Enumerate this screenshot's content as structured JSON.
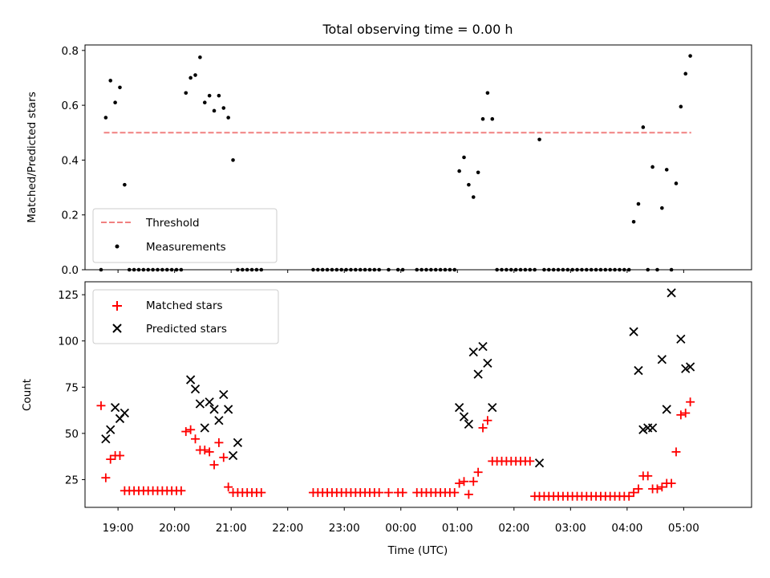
{
  "chart_data": [
    {
      "type": "scatter",
      "title": "Total observing time = 0.00 h",
      "xlabel": "",
      "ylabel": "Matched/Predicted stars",
      "ylim": [
        0,
        0.82
      ],
      "yticks": [
        0.0,
        0.2,
        0.4,
        0.6,
        0.8
      ],
      "ytick_labels": [
        "0.0",
        "0.2",
        "0.4",
        "0.6",
        "0.8"
      ],
      "legend_position": "lower-left",
      "legend": [
        "Threshold",
        "Measurements"
      ],
      "colors": {
        "threshold": "#f08080",
        "measurements": "#000000"
      },
      "threshold": {
        "name": "Threshold",
        "value": 0.5,
        "x_start": "18:45",
        "x_end": "05:08"
      },
      "series": [
        {
          "name": "Measurements",
          "x": [
            "18:42",
            "18:47",
            "18:52",
            "18:57",
            "19:02",
            "19:07",
            "19:12",
            "19:17",
            "19:22",
            "19:27",
            "19:32",
            "19:37",
            "19:42",
            "19:47",
            "19:52",
            "19:57",
            "20:02",
            "20:07",
            "20:12",
            "20:17",
            "20:22",
            "20:27",
            "20:32",
            "20:37",
            "20:42",
            "20:47",
            "20:52",
            "20:57",
            "21:02",
            "21:07",
            "21:12",
            "21:17",
            "21:22",
            "21:27",
            "21:32",
            "22:27",
            "22:32",
            "22:37",
            "22:42",
            "22:47",
            "22:52",
            "22:57",
            "23:02",
            "23:07",
            "23:12",
            "23:17",
            "23:22",
            "23:27",
            "23:32",
            "23:37",
            "23:47",
            "23:57",
            "00:02",
            "00:17",
            "00:22",
            "00:27",
            "00:32",
            "00:37",
            "00:42",
            "00:47",
            "00:52",
            "00:57",
            "01:02",
            "01:07",
            "01:12",
            "01:17",
            "01:22",
            "01:27",
            "01:32",
            "01:37",
            "01:42",
            "01:47",
            "01:52",
            "01:57",
            "02:02",
            "02:07",
            "02:12",
            "02:17",
            "02:22",
            "02:27",
            "02:32",
            "02:37",
            "02:42",
            "02:47",
            "02:52",
            "02:57",
            "03:02",
            "03:07",
            "03:12",
            "03:17",
            "03:22",
            "03:27",
            "03:32",
            "03:37",
            "03:42",
            "03:47",
            "03:52",
            "03:57",
            "04:02",
            "04:07",
            "04:12",
            "04:17",
            "04:22",
            "04:27",
            "04:32",
            "04:37",
            "04:42",
            "04:47",
            "04:52",
            "04:57",
            "05:02",
            "05:07"
          ],
          "y": [
            0.0,
            0.555,
            0.69,
            0.61,
            0.665,
            0.31,
            0.0,
            0.0,
            0.0,
            0.0,
            0.0,
            0.0,
            0.0,
            0.0,
            0.0,
            0.0,
            0.0,
            0.0,
            0.645,
            0.7,
            0.71,
            0.775,
            0.61,
            0.635,
            0.58,
            0.635,
            0.59,
            0.555,
            0.4,
            0.0,
            0.0,
            0.0,
            0.0,
            0.0,
            0.0,
            0.0,
            0.0,
            0.0,
            0.0,
            0.0,
            0.0,
            0.0,
            0.0,
            0.0,
            0.0,
            0.0,
            0.0,
            0.0,
            0.0,
            0.0,
            0.0,
            0.0,
            0.0,
            0.0,
            0.0,
            0.0,
            0.0,
            0.0,
            0.0,
            0.0,
            0.0,
            0.0,
            0.36,
            0.41,
            0.31,
            0.265,
            0.355,
            0.55,
            0.645,
            0.55,
            0.0,
            0.0,
            0.0,
            0.0,
            0.0,
            0.0,
            0.0,
            0.0,
            0.0,
            0.475,
            0.0,
            0.0,
            0.0,
            0.0,
            0.0,
            0.0,
            0.0,
            0.0,
            0.0,
            0.0,
            0.0,
            0.0,
            0.0,
            0.0,
            0.0,
            0.0,
            0.0,
            0.0,
            0.0,
            0.175,
            0.24,
            0.52,
            0.0,
            0.375,
            0.0,
            0.225,
            0.365,
            0.0,
            0.315,
            0.595,
            0.715,
            0.78
          ]
        }
      ]
    },
    {
      "type": "scatter",
      "title": "",
      "xlabel": "Time (UTC)",
      "ylabel": "Count",
      "ylim": [
        10,
        132
      ],
      "yticks": [
        25,
        50,
        75,
        100,
        125
      ],
      "ytick_labels": [
        "25",
        "50",
        "75",
        "100",
        "125"
      ],
      "xlim": [
        "18:25",
        "06:12"
      ],
      "xticks": [
        "19:00",
        "20:00",
        "21:00",
        "22:00",
        "23:00",
        "00:00",
        "01:00",
        "02:00",
        "03:00",
        "04:00",
        "05:00"
      ],
      "xtick_labels": [
        "19:00",
        "20:00",
        "21:00",
        "22:00",
        "23:00",
        "00:00",
        "01:00",
        "02:00",
        "03:00",
        "04:00",
        "05:00"
      ],
      "legend_position": "upper-left",
      "legend": [
        "Matched stars",
        "Predicted stars"
      ],
      "colors": {
        "matched": "#ff0000",
        "predicted": "#000000"
      },
      "series": [
        {
          "name": "Matched stars",
          "x": [
            "18:42",
            "18:47",
            "18:52",
            "18:57",
            "19:02",
            "19:07",
            "19:12",
            "19:17",
            "19:22",
            "19:27",
            "19:32",
            "19:37",
            "19:42",
            "19:47",
            "19:52",
            "19:57",
            "20:02",
            "20:07",
            "20:12",
            "20:17",
            "20:22",
            "20:27",
            "20:32",
            "20:37",
            "20:42",
            "20:47",
            "20:52",
            "20:57",
            "21:02",
            "21:07",
            "21:12",
            "21:17",
            "21:22",
            "21:27",
            "21:32",
            "22:27",
            "22:32",
            "22:37",
            "22:42",
            "22:47",
            "22:52",
            "22:57",
            "23:02",
            "23:07",
            "23:12",
            "23:17",
            "23:22",
            "23:27",
            "23:32",
            "23:37",
            "23:47",
            "23:57",
            "00:02",
            "00:17",
            "00:22",
            "00:27",
            "00:32",
            "00:37",
            "00:42",
            "00:47",
            "00:52",
            "00:57",
            "01:02",
            "01:07",
            "01:12",
            "01:17",
            "01:22",
            "01:27",
            "01:32",
            "01:37",
            "01:42",
            "01:47",
            "01:52",
            "01:57",
            "02:02",
            "02:07",
            "02:12",
            "02:17",
            "02:22",
            "02:27",
            "02:32",
            "02:37",
            "02:42",
            "02:47",
            "02:52",
            "02:57",
            "03:02",
            "03:07",
            "03:12",
            "03:17",
            "03:22",
            "03:27",
            "03:32",
            "03:37",
            "03:42",
            "03:47",
            "03:52",
            "03:57",
            "04:02",
            "04:07",
            "04:12",
            "04:17",
            "04:22",
            "04:27",
            "04:32",
            "04:37",
            "04:42",
            "04:47",
            "04:52",
            "04:57",
            "05:02",
            "05:07"
          ],
          "y": [
            65,
            26,
            36,
            38,
            38,
            19,
            19,
            19,
            19,
            19,
            19,
            19,
            19,
            19,
            19,
            19,
            19,
            19,
            51,
            52,
            47,
            41,
            41,
            40,
            33,
            45,
            37,
            21,
            18,
            18,
            18,
            18,
            18,
            18,
            18,
            18,
            18,
            18,
            18,
            18,
            18,
            18,
            18,
            18,
            18,
            18,
            18,
            18,
            18,
            18,
            18,
            18,
            18,
            18,
            18,
            18,
            18,
            18,
            18,
            18,
            18,
            18,
            23,
            24,
            17,
            24,
            29,
            53,
            57,
            35,
            35,
            35,
            35,
            35,
            35,
            35,
            35,
            35,
            16,
            16,
            16,
            16,
            16,
            16,
            16,
            16,
            16,
            16,
            16,
            16,
            16,
            16,
            16,
            16,
            16,
            16,
            16,
            16,
            16,
            18,
            20,
            27,
            27,
            20,
            20,
            21,
            23,
            23,
            40,
            60,
            61,
            67
          ]
        },
        {
          "name": "Predicted stars",
          "x": [
            "18:47",
            "18:52",
            "18:57",
            "19:02",
            "19:07",
            "20:17",
            "20:22",
            "20:27",
            "20:32",
            "20:37",
            "20:42",
            "20:47",
            "20:52",
            "20:57",
            "21:02",
            "21:07",
            "01:02",
            "01:07",
            "01:12",
            "01:17",
            "01:22",
            "01:27",
            "01:32",
            "01:37",
            "02:27",
            "04:07",
            "04:12",
            "04:17",
            "04:22",
            "04:27",
            "04:37",
            "04:42",
            "04:47",
            "04:57",
            "05:02",
            "05:07"
          ],
          "y": [
            47,
            52,
            64,
            58,
            61,
            79,
            74,
            66,
            53,
            67,
            63,
            57,
            71,
            63,
            38,
            45,
            64,
            59,
            55,
            94,
            82,
            97,
            88,
            64,
            34,
            105,
            84,
            52,
            53,
            53,
            90,
            63,
            126,
            101,
            85,
            86
          ]
        }
      ]
    }
  ]
}
